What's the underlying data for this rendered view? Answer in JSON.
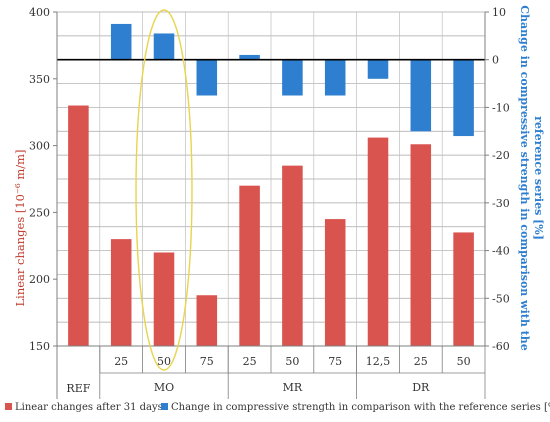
{
  "chart_data": {
    "type": "bar",
    "categories": [
      {
        "sub": "",
        "group": "REF"
      },
      {
        "sub": "25",
        "group": "MO"
      },
      {
        "sub": "50",
        "group": "MO"
      },
      {
        "sub": "75",
        "group": "MO"
      },
      {
        "sub": "25",
        "group": "MR"
      },
      {
        "sub": "50",
        "group": "MR"
      },
      {
        "sub": "75",
        "group": "MR"
      },
      {
        "sub": "12,5",
        "group": "DR"
      },
      {
        "sub": "25",
        "group": "DR"
      },
      {
        "sub": "50",
        "group": "DR"
      }
    ],
    "groups": [
      "REF",
      "MO",
      "MR",
      "DR"
    ],
    "series": [
      {
        "name": "Linear changes after 31 days",
        "axis": "left",
        "color": "#D9534F",
        "values": [
          330,
          230,
          220,
          188,
          270,
          285,
          245,
          306,
          301,
          235
        ]
      },
      {
        "name": "Change in compressive strength in comparison with the reference series [%]",
        "axis": "right",
        "color": "#2E7FD0",
        "values": [
          null,
          7.5,
          5.5,
          -7.5,
          1,
          -7.5,
          -7.5,
          -4,
          -15,
          -16
        ]
      }
    ],
    "ylabel_left": "Linear changes [10⁻⁶ m/m]",
    "ylabel_right": "Change in compressive strength in comparison with the reference series [%]",
    "ylim_left": [
      150,
      400
    ],
    "ylim_right": [
      -60,
      10
    ],
    "yticks_left": [
      150,
      200,
      250,
      300,
      350,
      400
    ],
    "yticks_right": [
      -60,
      -50,
      -40,
      -30,
      -20,
      -10,
      0,
      10
    ],
    "left_color": "#D9534F",
    "right_color": "#2E7FD0",
    "grid": true,
    "highlight_category_index": 2,
    "highlight_color": "#E8D44D",
    "legend_position": "bottom"
  }
}
